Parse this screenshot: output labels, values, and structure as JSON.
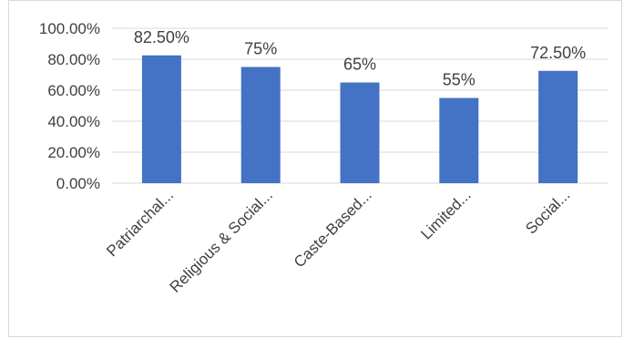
{
  "chart_data": {
    "type": "bar",
    "title": "",
    "xlabel": "",
    "ylabel": "",
    "categories": [
      "Patriarchal...",
      "Religious & Social...",
      "Caste-Based...",
      "Limited...",
      "Social..."
    ],
    "values": [
      82.5,
      75,
      65,
      55,
      72.5
    ],
    "data_labels": [
      "82.50%",
      "75%",
      "65%",
      "55%",
      "72.50%"
    ],
    "ylim": [
      0,
      100
    ],
    "yticks": [
      0,
      20,
      40,
      60,
      80,
      100
    ],
    "ytick_labels": [
      "0.00%",
      "20.00%",
      "40.00%",
      "60.00%",
      "80.00%",
      "100.00%"
    ],
    "grid": true,
    "legend": "none",
    "bar_color": "#4472c4",
    "grid_color": "#d9d9d9",
    "text_color": "#404040"
  }
}
